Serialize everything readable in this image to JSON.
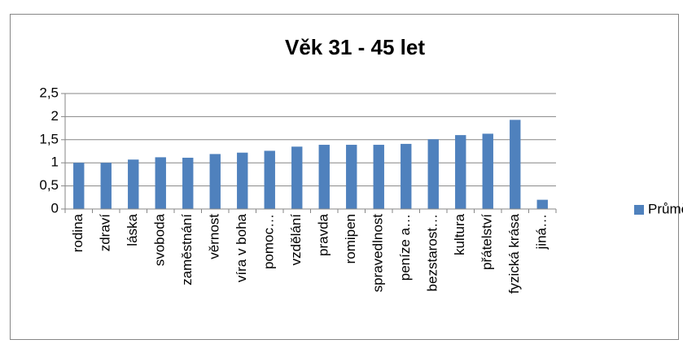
{
  "chart_data": {
    "type": "bar",
    "title": "Věk 31 - 45 let",
    "categories": [
      "rodina",
      "zdraví",
      "láska",
      "svoboda",
      "zaměstnání",
      "věrnost",
      "víra v boha",
      "pomoc…",
      "vzdělání",
      "pravda",
      "romipen",
      "spravedlnost",
      "peníze a…",
      "bezstarost…",
      "kultura",
      "přátelství",
      "fyzická krása",
      "jiná…"
    ],
    "series": [
      {
        "name": "Průměr",
        "color": "#4f81bd",
        "values": [
          1.0,
          1.0,
          1.07,
          1.12,
          1.11,
          1.19,
          1.22,
          1.26,
          1.35,
          1.39,
          1.39,
          1.39,
          1.41,
          1.51,
          1.6,
          1.63,
          1.93,
          0.2
        ]
      }
    ],
    "ylim": [
      0,
      2.5
    ],
    "yticks": [
      0,
      {
        "value": 0.5,
        "label": "0,5"
      },
      1,
      {
        "value": 1.5,
        "label": "1,5"
      },
      2,
      {
        "value": 2.5,
        "label": "2,5"
      }
    ],
    "grid": true,
    "legend": "right"
  }
}
